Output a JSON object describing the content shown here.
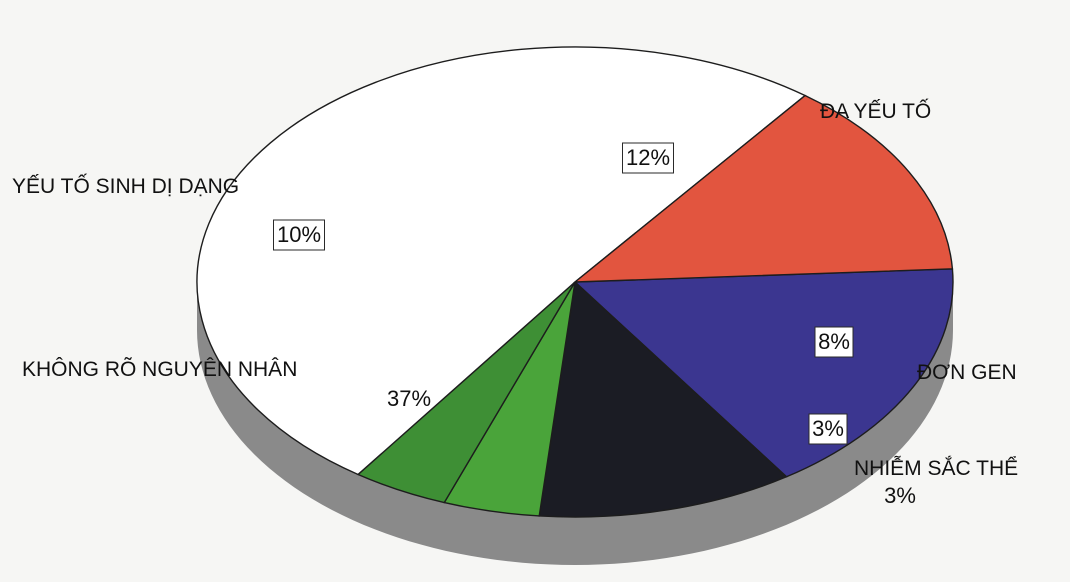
{
  "chart_data": {
    "type": "pie",
    "slices": [
      {
        "label": "ĐA YẾU TỐ",
        "value_label": "12%",
        "value": 12,
        "color": "#3b3690",
        "label_box": true
      },
      {
        "label": "ĐƠN GEN",
        "value_label": "8%",
        "value": 8,
        "color": "#1b1c24",
        "label_box": true
      },
      {
        "label": "NHIỄM SẮC THỂ",
        "value_label": "3%",
        "value": 3,
        "color": "#4aa43a",
        "label_box": true
      },
      {
        "label": "NHIỄM SẮC THỂ",
        "value_label": "3%",
        "value": 3,
        "color": "#3e8f35",
        "label_box": false
      },
      {
        "label": "KHÔNG RÕ NGUYÊN NHÂN",
        "value_label": "37%",
        "value": 37,
        "color": "#ffffff",
        "label_box": false
      },
      {
        "label": "YẾU TỐ SINH DỊ DẠNG",
        "value_label": "10%",
        "value": 10,
        "color": "#e2553f",
        "label_box": true
      }
    ],
    "style": "3d-pie",
    "side_color": "#8a8a8a"
  }
}
